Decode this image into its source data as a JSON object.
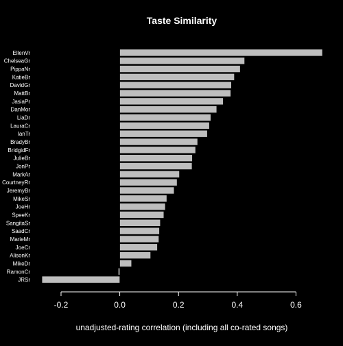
{
  "chart_data": {
    "type": "bar",
    "orientation": "horizontal",
    "title": "Taste Similarity",
    "xlabel": "unadjusted-rating correlation (including all co-rated songs)",
    "ylabel": "",
    "xlim": [
      -0.27,
      0.69
    ],
    "xticks": [
      -0.2,
      0.0,
      0.2,
      0.4,
      0.6
    ],
    "xtick_labels": [
      "-0.2",
      "0.0",
      "0.2",
      "0.4",
      "0.6"
    ],
    "grid": false,
    "categories": [
      "EllenVr",
      "ChelseaGr",
      "PippaNr",
      "KatieBr",
      "DavidGr",
      "MattBr",
      "JasiaPr",
      "DanMor",
      "LiaDr",
      "LauraCr",
      "IanTr",
      "BradyBr",
      "BridgidFr",
      "JulieBr",
      "JonPr",
      "MarkAr",
      "CourtneyRr",
      "JeremyBr",
      "MikeSr",
      "JoeHr",
      "SpeeKr",
      "SangitaSr",
      "SaadCr",
      "MarieMr",
      "JoeCr",
      "AlisonKr",
      "MikeDr",
      "RamonCr",
      "JRSr"
    ],
    "values": [
      0.69,
      0.425,
      0.41,
      0.39,
      0.38,
      0.378,
      0.352,
      0.33,
      0.31,
      0.305,
      0.298,
      0.265,
      0.258,
      0.247,
      0.246,
      0.203,
      0.195,
      0.185,
      0.16,
      0.155,
      0.15,
      0.138,
      0.135,
      0.133,
      0.128,
      0.105,
      0.04,
      -0.005,
      -0.265
    ],
    "colors": {
      "background": "#000000",
      "bar_fill": "#bebebe",
      "bar_stroke": "#000000",
      "text": "#ffffff",
      "axis": "#ffffff"
    }
  }
}
